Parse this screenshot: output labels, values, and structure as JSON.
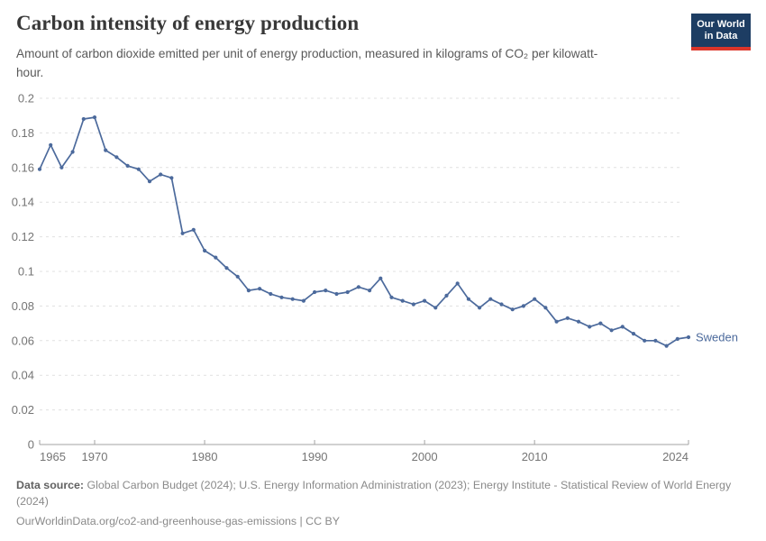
{
  "header": {
    "title": "Carbon intensity of energy production",
    "subtitle": "Amount of carbon dioxide emitted per unit of energy production, measured in kilograms of CO₂ per kilowatt-hour."
  },
  "logo": {
    "line1": "Our World",
    "line2": "in Data",
    "bg_color": "#1d3d63",
    "bar_color": "#dc352a"
  },
  "footer": {
    "source_label": "Data source:",
    "source_text": " Global Carbon Budget (2024); U.S. Energy Information Administration (2023); Energy Institute - Statistical Review of World Energy (2024)",
    "url_line": "OurWorldinData.org/co2-and-greenhouse-gas-emissions | CC BY"
  },
  "chart_data": {
    "type": "line",
    "title": "Carbon intensity of energy production",
    "xlabel": "",
    "ylabel": "kg CO₂ per kilowatt-hour",
    "xlim": [
      1965,
      2024
    ],
    "ylim": [
      0,
      0.2
    ],
    "x_ticks": [
      1965,
      1970,
      1980,
      1990,
      2000,
      2010,
      2024
    ],
    "y_ticks": [
      0,
      0.02,
      0.04,
      0.06,
      0.08,
      0.1,
      0.12,
      0.14,
      0.16,
      0.18,
      0.2
    ],
    "grid": "horizontal-dashed",
    "legend_position": "end-of-line",
    "colors": {
      "grid": "#e0e0e0",
      "axis": "#a3a3a3",
      "tick_text": "#757575"
    },
    "x": [
      1965,
      1966,
      1967,
      1968,
      1969,
      1970,
      1971,
      1972,
      1973,
      1974,
      1975,
      1976,
      1977,
      1978,
      1979,
      1980,
      1981,
      1982,
      1983,
      1984,
      1985,
      1986,
      1987,
      1988,
      1989,
      1990,
      1991,
      1992,
      1993,
      1994,
      1995,
      1996,
      1997,
      1998,
      1999,
      2000,
      2001,
      2002,
      2003,
      2004,
      2005,
      2006,
      2007,
      2008,
      2009,
      2010,
      2011,
      2012,
      2013,
      2014,
      2015,
      2016,
      2017,
      2018,
      2019,
      2020,
      2021,
      2022,
      2023,
      2024
    ],
    "series": [
      {
        "name": "Sweden",
        "color": "#4c6a9c",
        "values": [
          0.159,
          0.173,
          0.16,
          0.169,
          0.188,
          0.189,
          0.17,
          0.166,
          0.161,
          0.159,
          0.152,
          0.156,
          0.154,
          0.122,
          0.124,
          0.112,
          0.108,
          0.102,
          0.097,
          0.089,
          0.09,
          0.087,
          0.085,
          0.084,
          0.083,
          0.088,
          0.089,
          0.087,
          0.088,
          0.091,
          0.089,
          0.096,
          0.085,
          0.083,
          0.081,
          0.083,
          0.079,
          0.086,
          0.093,
          0.084,
          0.079,
          0.084,
          0.081,
          0.078,
          0.08,
          0.084,
          0.079,
          0.071,
          0.073,
          0.071,
          0.068,
          0.07,
          0.066,
          0.068,
          0.064,
          0.06,
          0.06,
          0.057,
          0.061,
          0.062
        ]
      }
    ]
  }
}
